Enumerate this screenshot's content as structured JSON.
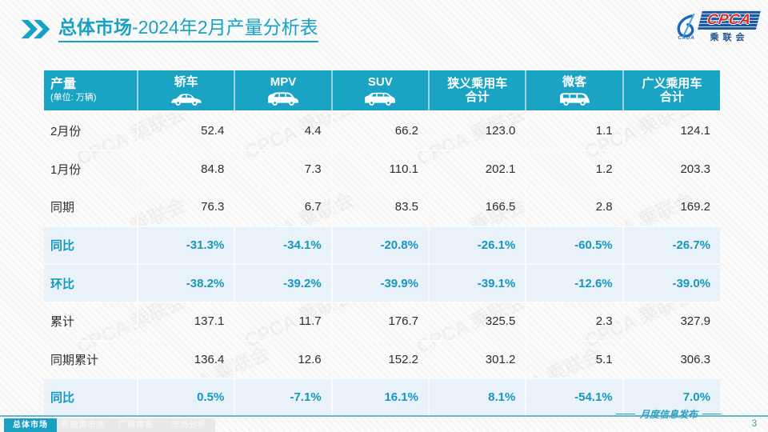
{
  "title": {
    "part1": "总体市场",
    "part2": "-2024年2月产量分析表"
  },
  "logo": {
    "cpca": "CPCA",
    "sub": "乘联会",
    "cada": "CADA"
  },
  "watermark": "CPCA 乘联会",
  "table": {
    "header": {
      "col0_title": "产量",
      "col0_sub": "(单位: 万辆)",
      "columns": [
        {
          "id": "sedan",
          "label": "轿车",
          "icon": "sedan-car-icon"
        },
        {
          "id": "mpv",
          "label": "MPV",
          "icon": "mpv-car-icon"
        },
        {
          "id": "suv",
          "label": "SUV",
          "icon": "suv-car-icon"
        },
        {
          "id": "pv-total",
          "label": "狭义乘用车",
          "label2": "合计"
        },
        {
          "id": "minivan",
          "label": "微客",
          "icon": "minivan-car-icon"
        },
        {
          "id": "broad-pv-total",
          "label": "广义乘用车",
          "label2": "合计"
        }
      ]
    },
    "rows": [
      {
        "label": "2月份",
        "type": "normal",
        "values": [
          "52.4",
          "4.4",
          "66.2",
          "123.0",
          "1.1",
          "124.1"
        ]
      },
      {
        "label": "1月份",
        "type": "normal",
        "values": [
          "84.8",
          "7.3",
          "110.1",
          "202.1",
          "1.2",
          "203.3"
        ]
      },
      {
        "label": "同期",
        "type": "normal",
        "values": [
          "76.3",
          "6.7",
          "83.5",
          "166.5",
          "2.8",
          "169.2"
        ]
      },
      {
        "label": "同比",
        "type": "percent",
        "values": [
          "-31.3%",
          "-34.1%",
          "-20.8%",
          "-26.1%",
          "-60.5%",
          "-26.7%"
        ]
      },
      {
        "label": "环比",
        "type": "percent",
        "values": [
          "-38.2%",
          "-39.2%",
          "-39.9%",
          "-39.1%",
          "-12.6%",
          "-39.0%"
        ]
      },
      {
        "label": "累计",
        "type": "normal",
        "values": [
          "137.1",
          "11.7",
          "176.7",
          "325.5",
          "2.3",
          "327.9"
        ]
      },
      {
        "label": "同期累计",
        "type": "normal",
        "values": [
          "136.4",
          "12.6",
          "152.2",
          "301.2",
          "5.1",
          "306.3"
        ]
      },
      {
        "label": "同比",
        "type": "percent",
        "values": [
          "0.5%",
          "-7.1%",
          "16.1%",
          "8.1%",
          "-54.1%",
          "7.0%"
        ]
      }
    ]
  },
  "chart_data": {
    "type": "table",
    "title": "总体市场-2024年2月产量分析表",
    "unit": "万辆",
    "columns": [
      "轿车",
      "MPV",
      "SUV",
      "狭义乘用车合计",
      "微客",
      "广义乘用车合计"
    ],
    "rows": [
      {
        "label": "2月份",
        "values": [
          52.4,
          4.4,
          66.2,
          123.0,
          1.1,
          124.1
        ]
      },
      {
        "label": "1月份",
        "values": [
          84.8,
          7.3,
          110.1,
          202.1,
          1.2,
          203.3
        ]
      },
      {
        "label": "同期",
        "values": [
          76.3,
          6.7,
          83.5,
          166.5,
          2.8,
          169.2
        ]
      },
      {
        "label": "同比",
        "values_percent": [
          -31.3,
          -34.1,
          -20.8,
          -26.1,
          -60.5,
          -26.7
        ]
      },
      {
        "label": "环比",
        "values_percent": [
          -38.2,
          -39.2,
          -39.9,
          -39.1,
          -12.6,
          -39.0
        ]
      },
      {
        "label": "累计",
        "values": [
          137.1,
          11.7,
          176.7,
          325.5,
          2.3,
          327.9
        ]
      },
      {
        "label": "同期累计",
        "values": [
          136.4,
          12.6,
          152.2,
          301.2,
          5.1,
          306.3
        ]
      },
      {
        "label": "同比",
        "values_percent": [
          0.5,
          -7.1,
          16.1,
          8.1,
          -54.1,
          7.0
        ]
      }
    ]
  },
  "footer": {
    "tabs": [
      {
        "id": "overall",
        "label": "总体市场",
        "active": true
      },
      {
        "id": "nev-market",
        "label": "新能源市场",
        "active": false
      },
      {
        "id": "manufacturer-ranking",
        "label": "厂商排名",
        "active": false
      },
      {
        "id": "market-analysis",
        "label": "市场分析",
        "active": false
      }
    ],
    "publication": "月度信息发布",
    "page_number": "3"
  },
  "colors": {
    "accent": "#17a1c4",
    "table_header_bg": "#1ba3c4",
    "percent_row_bg": "#e8f2f8",
    "percent_text": "#1697c1",
    "logo_navy": "#1857a6",
    "logo_red": "#d03024"
  }
}
